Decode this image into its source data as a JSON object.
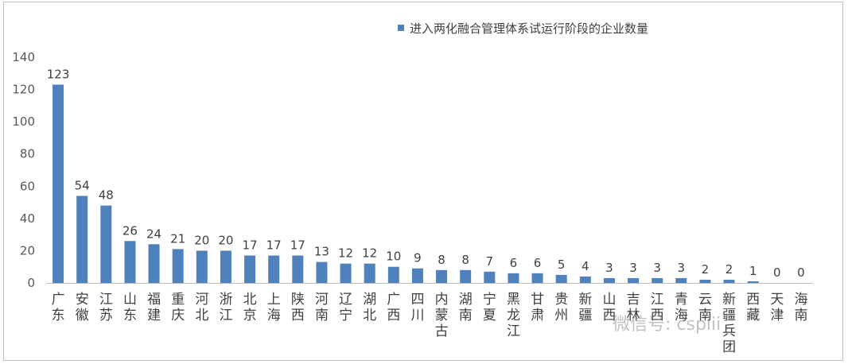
{
  "chart_data": {
    "type": "bar",
    "title": "",
    "xlabel": "",
    "ylabel": "",
    "ylim": [
      0,
      140
    ],
    "yticks": [
      0,
      20,
      40,
      60,
      80,
      100,
      120,
      140
    ],
    "grid": false,
    "legend_position": "top-center",
    "categories": [
      "广东",
      "安徽",
      "江苏",
      "山东",
      "福建",
      "重庆",
      "河北",
      "浙江",
      "北京",
      "上海",
      "陕西",
      "河南",
      "辽宁",
      "湖北",
      "广西",
      "四川",
      "内蒙古",
      "湖南",
      "宁夏",
      "黑龙江",
      "甘肃",
      "贵州",
      "新疆",
      "山西",
      "吉林",
      "江西",
      "青海",
      "云南",
      "新疆兵团",
      "西藏",
      "天津",
      "海南"
    ],
    "series": [
      {
        "name": "进入两化融合管理体系试运行阶段的企业数量",
        "values": [
          123,
          54,
          48,
          26,
          24,
          21,
          20,
          20,
          17,
          17,
          17,
          13,
          12,
          12,
          10,
          9,
          8,
          8,
          7,
          6,
          6,
          5,
          4,
          3,
          3,
          3,
          3,
          2,
          2,
          1,
          0,
          0
        ]
      }
    ],
    "colors": {
      "bar": "#4f81bd",
      "axis": "#bfbfbf"
    }
  },
  "watermark": "微信号: cspiii"
}
